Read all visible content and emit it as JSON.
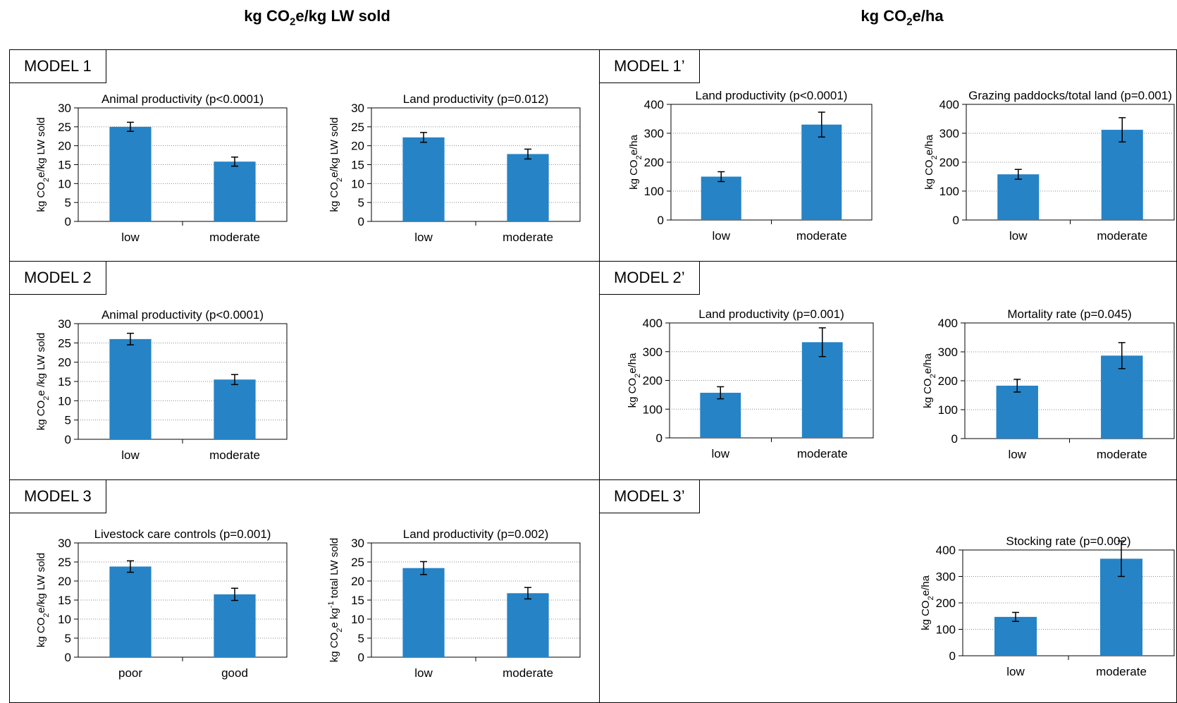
{
  "headings": {
    "left": {
      "pre": "kg CO",
      "sub": "2",
      "post": "e/kg LW sold"
    },
    "right": {
      "pre": "kg CO",
      "sub": "2",
      "post": "e/ha"
    }
  },
  "models": [
    "MODEL 1",
    "MODEL 1’",
    "MODEL 2",
    "MODEL 2’",
    "MODEL 3",
    "MODEL 3’"
  ],
  "colors": {
    "bar": "#2683c6",
    "axis": "#000000",
    "grid": "#888888"
  },
  "chart_data": [
    {
      "type": "bar",
      "title": "Animal productivity (p<0.0001)",
      "ylabel": [
        "kg CO",
        "2",
        "e/kg LW sold"
      ],
      "categories": [
        "low",
        "moderate"
      ],
      "values": [
        25.0,
        15.8
      ],
      "errors": [
        1.2,
        1.2
      ],
      "ylim": [
        0,
        30
      ],
      "yticks": [
        0,
        5,
        10,
        15,
        20,
        25,
        30
      ],
      "grid": true
    },
    {
      "type": "bar",
      "title": "Land productivity (p=0.012)",
      "ylabel": [
        "kg CO",
        "2",
        "e/kg LW sold"
      ],
      "categories": [
        "low",
        "moderate"
      ],
      "values": [
        22.2,
        17.8
      ],
      "errors": [
        1.3,
        1.3
      ],
      "ylim": [
        0,
        30
      ],
      "yticks": [
        0,
        5,
        10,
        15,
        20,
        25,
        30
      ],
      "grid": true
    },
    {
      "type": "bar",
      "title": "Land productivity (p<0.0001)",
      "ylabel": [
        "kg CO",
        "2",
        "e/ha"
      ],
      "categories": [
        "low",
        "moderate"
      ],
      "values": [
        150,
        330
      ],
      "errors": [
        17,
        43
      ],
      "ylim": [
        0,
        400
      ],
      "yticks": [
        0,
        100,
        200,
        300,
        400
      ],
      "grid": true
    },
    {
      "type": "bar",
      "title": "Grazing paddocks/total land (p=0.001)",
      "ylabel": [
        "kg CO",
        "2",
        "e/ha"
      ],
      "categories": [
        "low",
        "moderate"
      ],
      "values": [
        158,
        312
      ],
      "errors": [
        17,
        42
      ],
      "ylim": [
        0,
        400
      ],
      "yticks": [
        0,
        100,
        200,
        300,
        400
      ],
      "grid": true
    },
    {
      "type": "bar",
      "title": "Animal productivity (p<0.0001)",
      "ylabel": [
        "kg CO",
        "2",
        "e /kg LW sold"
      ],
      "categories": [
        "low",
        "moderate"
      ],
      "values": [
        26.0,
        15.5
      ],
      "errors": [
        1.5,
        1.3
      ],
      "ylim": [
        0,
        30
      ],
      "yticks": [
        0,
        5,
        10,
        15,
        20,
        25,
        30
      ],
      "grid": true
    },
    {
      "type": "bar",
      "title": "Land productivity (p=0.001)",
      "ylabel": [
        "kg CO",
        "2",
        "e/ha"
      ],
      "categories": [
        "low",
        "moderate"
      ],
      "values": [
        157,
        333
      ],
      "errors": [
        21,
        50
      ],
      "ylim": [
        0,
        400
      ],
      "yticks": [
        0,
        100,
        200,
        300,
        400
      ],
      "grid": true
    },
    {
      "type": "bar",
      "title": "Mortality rate (p=0.045)",
      "ylabel": [
        "kg CO",
        "2",
        "e/ha"
      ],
      "categories": [
        "low",
        "moderate"
      ],
      "values": [
        183,
        287
      ],
      "errors": [
        22,
        45
      ],
      "ylim": [
        0,
        400
      ],
      "yticks": [
        0,
        100,
        200,
        300,
        400
      ],
      "grid": true
    },
    {
      "type": "bar",
      "title": "Livestock care controls (p=0.001)",
      "ylabel": [
        "kg CO",
        "2",
        "e/kg LW sold"
      ],
      "categories": [
        "poor",
        "good"
      ],
      "values": [
        23.8,
        16.5
      ],
      "errors": [
        1.5,
        1.6
      ],
      "ylim": [
        0,
        30
      ],
      "yticks": [
        0,
        5,
        10,
        15,
        20,
        25,
        30
      ],
      "grid": true
    },
    {
      "type": "bar",
      "title": "Land productivity (p=0.002)",
      "ylabel": [
        "kg CO",
        "2",
        "e  kg",
        "-1",
        " total LW sold"
      ],
      "categories": [
        "low",
        "moderate"
      ],
      "values": [
        23.4,
        16.8
      ],
      "errors": [
        1.7,
        1.5
      ],
      "ylim": [
        0,
        30
      ],
      "yticks": [
        0,
        5,
        10,
        15,
        20,
        25,
        30
      ],
      "grid": true
    },
    {
      "type": "bar",
      "title": "Stocking rate (p=0.002)",
      "ylabel": [
        "kg CO",
        "2",
        "e/ha"
      ],
      "categories": [
        "low",
        "moderate"
      ],
      "values": [
        147,
        367
      ],
      "errors": [
        17,
        67
      ],
      "ylim": [
        0,
        400
      ],
      "yticks": [
        0,
        100,
        200,
        300,
        400
      ],
      "grid": true
    }
  ]
}
